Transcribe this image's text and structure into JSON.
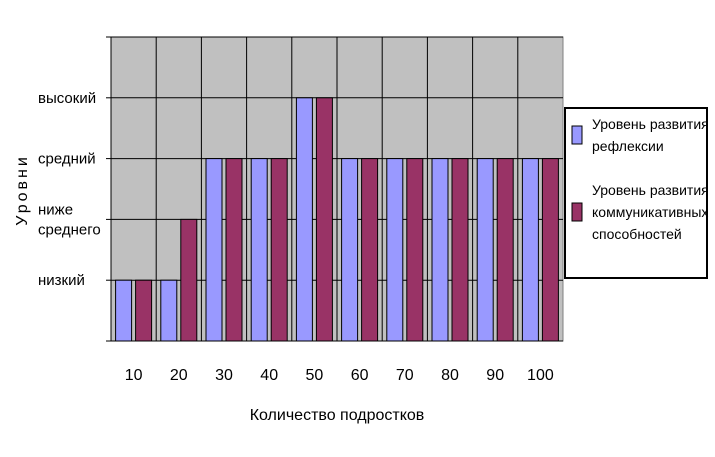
{
  "chart_data": {
    "type": "bar",
    "xlabel": "Количество подростков",
    "ylabel": "Уровни",
    "categories": [
      "10",
      "20",
      "30",
      "40",
      "50",
      "60",
      "70",
      "80",
      "90",
      "100"
    ],
    "levels": [
      {
        "value": 1,
        "label": [
          "низкий"
        ]
      },
      {
        "value": 2,
        "label": [
          "ниже",
          "среднего"
        ]
      },
      {
        "value": 3,
        "label": [
          "средний"
        ]
      },
      {
        "value": 4,
        "label": [
          "высокий"
        ]
      }
    ],
    "ylim": [
      0,
      5
    ],
    "grid": true,
    "legend_position": "right",
    "series": [
      {
        "name": [
          "Уровень развития",
          "рефлексии"
        ],
        "color": "#9999ff",
        "values": [
          1,
          1,
          3,
          3,
          4,
          3,
          3,
          3,
          3,
          3
        ]
      },
      {
        "name": [
          "Уровень развития",
          "коммуникативных",
          "способностей"
        ],
        "color": "#993366",
        "values": [
          1,
          2,
          3,
          3,
          4,
          3,
          3,
          3,
          3,
          3
        ]
      }
    ],
    "plot_background": "#c0c0c0"
  }
}
